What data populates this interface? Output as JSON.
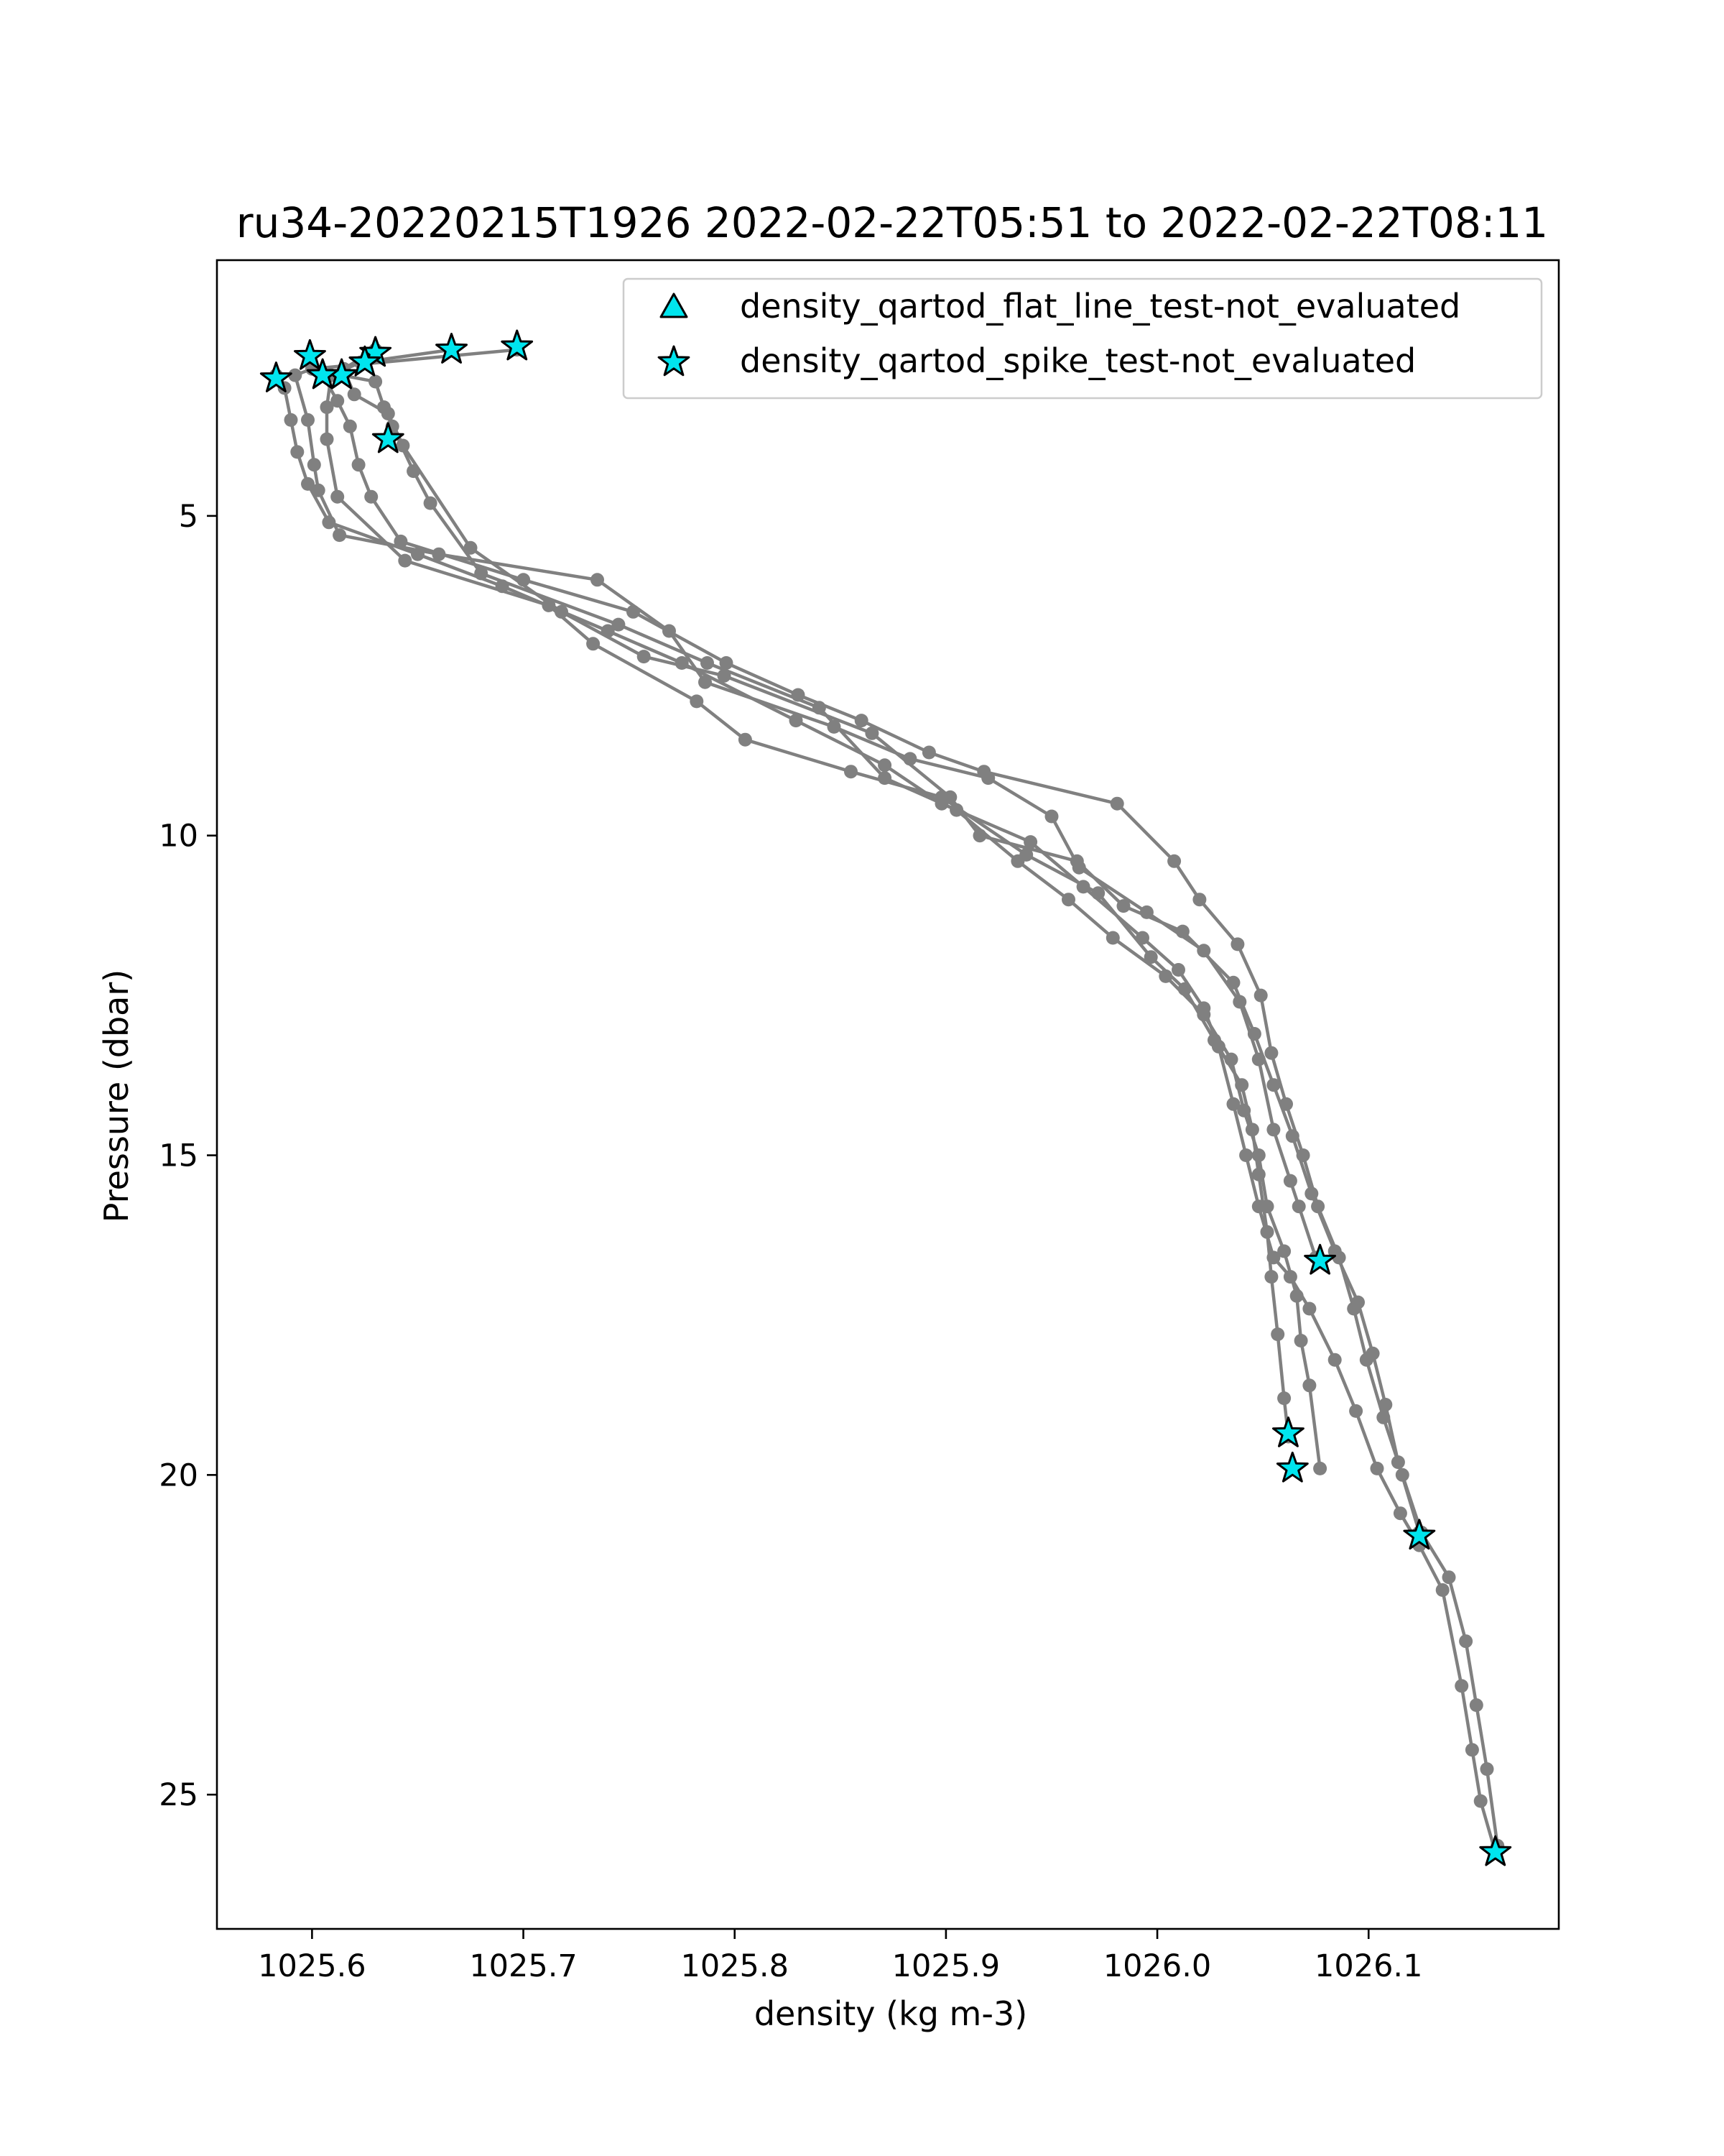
{
  "chart_data": {
    "type": "line",
    "title": "ru34-20220215T1926 2022-02-22T05:51 to 2022-02-22T08:11",
    "xlabel": "density (kg m-3)",
    "ylabel": "Pressure (dbar)",
    "xlim": [
      1025.555,
      1026.19
    ],
    "ylim": [
      27.1,
      1.0
    ],
    "y_inverted": true,
    "grid": false,
    "legend_position": "top-right",
    "x_ticks": [
      {
        "value": 1025.6,
        "label": "1025.6"
      },
      {
        "value": 1025.7,
        "label": "1025.7"
      },
      {
        "value": 1025.8,
        "label": "1025.8"
      },
      {
        "value": 1025.9,
        "label": "1025.9"
      },
      {
        "value": 1026.0,
        "label": "1026.0"
      },
      {
        "value": 1026.1,
        "label": "1026.1"
      }
    ],
    "y_ticks": [
      {
        "value": 5,
        "label": "5"
      },
      {
        "value": 10,
        "label": "10"
      },
      {
        "value": 15,
        "label": "15"
      },
      {
        "value": 20,
        "label": "20"
      },
      {
        "value": 25,
        "label": "25"
      }
    ],
    "colors": {
      "profile_line": "#808080",
      "flag_fill": "#00e5ee",
      "flag_edge": "#000000"
    },
    "profiles": [
      {
        "points": [
          [
            1025.697,
            2.4
          ],
          [
            1025.6,
            2.7
          ],
          [
            1025.592,
            2.8
          ],
          [
            1025.598,
            3.5
          ],
          [
            1025.601,
            4.2
          ],
          [
            1025.603,
            4.6
          ],
          [
            1025.613,
            5.3
          ],
          [
            1025.66,
            5.6
          ],
          [
            1025.735,
            6.0
          ],
          [
            1025.769,
            6.8
          ],
          [
            1025.786,
            7.6
          ],
          [
            1025.847,
            8.3
          ],
          [
            1025.883,
            8.8
          ],
          [
            1025.92,
            9.1
          ],
          [
            1025.95,
            9.7
          ],
          [
            1025.963,
            10.5
          ],
          [
            1025.995,
            11.2
          ],
          [
            1026.022,
            11.8
          ],
          [
            1026.039,
            12.6
          ],
          [
            1026.048,
            13.5
          ],
          [
            1026.055,
            14.6
          ],
          [
            1026.063,
            15.4
          ],
          [
            1026.067,
            15.8
          ],
          [
            1026.075,
            16.6
          ]
        ]
      },
      {
        "points": [
          [
            1025.666,
            2.4
          ],
          [
            1025.623,
            2.6
          ],
          [
            1025.609,
            2.8
          ],
          [
            1025.607,
            3.3
          ],
          [
            1025.607,
            3.8
          ],
          [
            1025.612,
            4.7
          ],
          [
            1025.644,
            5.7
          ],
          [
            1025.712,
            6.4
          ],
          [
            1025.733,
            7.0
          ],
          [
            1025.782,
            7.9
          ],
          [
            1025.805,
            8.5
          ],
          [
            1025.855,
            9.0
          ],
          [
            1025.898,
            9.4
          ],
          [
            1025.938,
            10.3
          ],
          [
            1025.972,
            10.9
          ],
          [
            1025.997,
            11.9
          ],
          [
            1026.013,
            12.4
          ],
          [
            1026.027,
            13.2
          ],
          [
            1026.04,
            13.9
          ],
          [
            1026.045,
            14.6
          ],
          [
            1026.048,
            15.3
          ],
          [
            1026.052,
            16.2
          ],
          [
            1026.054,
            16.9
          ],
          [
            1026.057,
            17.8
          ],
          [
            1026.06,
            18.8
          ],
          [
            1026.062,
            19.4
          ]
        ]
      },
      {
        "points": [
          [
            1025.63,
            2.4
          ],
          [
            1025.615,
            2.7
          ],
          [
            1025.62,
            3.1
          ],
          [
            1025.636,
            3.4
          ],
          [
            1025.643,
            3.9
          ],
          [
            1025.675,
            5.5
          ],
          [
            1025.718,
            6.5
          ],
          [
            1025.757,
            7.2
          ],
          [
            1025.795,
            7.5
          ],
          [
            1025.865,
            8.4
          ],
          [
            1025.902,
            9.4
          ],
          [
            1025.916,
            10.0
          ],
          [
            1025.962,
            10.4
          ],
          [
            1025.984,
            11.1
          ],
          [
            1026.012,
            11.5
          ],
          [
            1026.036,
            12.3
          ],
          [
            1026.046,
            13.1
          ],
          [
            1026.055,
            13.9
          ],
          [
            1026.064,
            14.7
          ],
          [
            1026.073,
            15.6
          ],
          [
            1026.084,
            16.5
          ],
          [
            1026.095,
            17.3
          ],
          [
            1026.102,
            18.1
          ],
          [
            1026.108,
            18.9
          ],
          [
            1026.114,
            19.8
          ],
          [
            1026.124,
            20.9
          ]
        ]
      },
      {
        "points": [
          [
            1025.614,
            2.8
          ],
          [
            1025.63,
            2.9
          ],
          [
            1025.634,
            3.3
          ],
          [
            1025.638,
            3.6
          ],
          [
            1025.648,
            4.3
          ],
          [
            1025.656,
            4.8
          ],
          [
            1025.68,
            5.9
          ],
          [
            1025.745,
            6.7
          ],
          [
            1025.787,
            7.3
          ],
          [
            1025.84,
            8.0
          ],
          [
            1025.871,
            9.1
          ],
          [
            1025.905,
            9.6
          ],
          [
            1025.934,
            10.4
          ],
          [
            1025.958,
            11.0
          ],
          [
            1025.979,
            11.6
          ],
          [
            1026.004,
            12.2
          ],
          [
            1026.022,
            12.8
          ],
          [
            1026.035,
            13.5
          ],
          [
            1026.041,
            14.3
          ],
          [
            1026.048,
            15.0
          ],
          [
            1026.052,
            15.8
          ],
          [
            1026.06,
            16.5
          ],
          [
            1026.066,
            17.2
          ],
          [
            1026.068,
            17.9
          ],
          [
            1026.072,
            18.6
          ],
          [
            1026.077,
            19.9
          ]
        ]
      },
      {
        "points": [
          [
            1025.583,
            2.8
          ],
          [
            1025.587,
            3.0
          ],
          [
            1025.59,
            3.5
          ],
          [
            1025.593,
            4.0
          ],
          [
            1025.598,
            4.5
          ],
          [
            1025.608,
            5.1
          ],
          [
            1025.65,
            5.6
          ],
          [
            1025.69,
            6.1
          ],
          [
            1025.74,
            6.8
          ],
          [
            1025.775,
            7.3
          ],
          [
            1025.829,
            8.2
          ],
          [
            1025.871,
            8.9
          ],
          [
            1025.898,
            9.5
          ],
          [
            1025.94,
            10.1
          ],
          [
            1025.965,
            10.8
          ],
          [
            1025.993,
            11.6
          ],
          [
            1026.01,
            12.1
          ],
          [
            1026.022,
            12.7
          ],
          [
            1026.029,
            13.3
          ],
          [
            1026.036,
            14.2
          ],
          [
            1026.042,
            15.0
          ],
          [
            1026.048,
            15.8
          ],
          [
            1026.055,
            16.6
          ],
          [
            1026.063,
            16.9
          ],
          [
            1026.072,
            17.4
          ],
          [
            1026.084,
            18.2
          ],
          [
            1026.094,
            19.0
          ],
          [
            1026.104,
            19.9
          ],
          [
            1026.115,
            20.6
          ],
          [
            1026.124,
            21.1
          ],
          [
            1026.135,
            21.8
          ],
          [
            1026.144,
            23.3
          ],
          [
            1026.149,
            24.3
          ],
          [
            1026.153,
            25.1
          ],
          [
            1026.16,
            25.9
          ]
        ]
      },
      {
        "points": [
          [
            1025.605,
            2.8
          ],
          [
            1025.612,
            3.2
          ],
          [
            1025.618,
            3.6
          ],
          [
            1025.622,
            4.2
          ],
          [
            1025.628,
            4.7
          ],
          [
            1025.642,
            5.4
          ],
          [
            1025.7,
            6.0
          ],
          [
            1025.752,
            6.5
          ],
          [
            1025.796,
            7.3
          ],
          [
            1025.83,
            7.8
          ],
          [
            1025.86,
            8.2
          ],
          [
            1025.892,
            8.7
          ],
          [
            1025.918,
            9.0
          ],
          [
            1025.981,
            9.5
          ],
          [
            1026.008,
            10.4
          ],
          [
            1026.02,
            11.0
          ],
          [
            1026.038,
            11.7
          ],
          [
            1026.049,
            12.5
          ],
          [
            1026.054,
            13.4
          ],
          [
            1026.061,
            14.2
          ],
          [
            1026.069,
            15.0
          ],
          [
            1026.076,
            15.8
          ],
          [
            1026.086,
            16.6
          ],
          [
            1026.093,
            17.4
          ],
          [
            1026.099,
            18.2
          ],
          [
            1026.107,
            19.1
          ],
          [
            1026.116,
            20.0
          ],
          [
            1026.125,
            20.9
          ],
          [
            1026.138,
            21.6
          ],
          [
            1026.146,
            22.6
          ],
          [
            1026.151,
            23.6
          ],
          [
            1026.156,
            24.6
          ],
          [
            1026.161,
            25.8
          ]
        ]
      }
    ],
    "flagged_points": [
      {
        "series": "density_qartod_spike_test-not_evaluated",
        "points": [
          [
            1025.697,
            2.35
          ],
          [
            1025.666,
            2.4
          ],
          [
            1025.63,
            2.45
          ],
          [
            1025.625,
            2.6
          ],
          [
            1025.614,
            2.8
          ],
          [
            1025.599,
            2.5
          ],
          [
            1025.605,
            2.8
          ],
          [
            1025.583,
            2.85
          ],
          [
            1025.636,
            3.8
          ],
          [
            1026.077,
            16.65
          ],
          [
            1026.062,
            19.35
          ],
          [
            1026.064,
            19.9
          ],
          [
            1026.124,
            20.95
          ],
          [
            1026.16,
            25.9
          ]
        ]
      }
    ],
    "legend": [
      {
        "marker": "triangle",
        "label": "density_qartod_flat_line_test-not_evaluated"
      },
      {
        "marker": "star",
        "label": "density_qartod_spike_test-not_evaluated"
      }
    ]
  }
}
